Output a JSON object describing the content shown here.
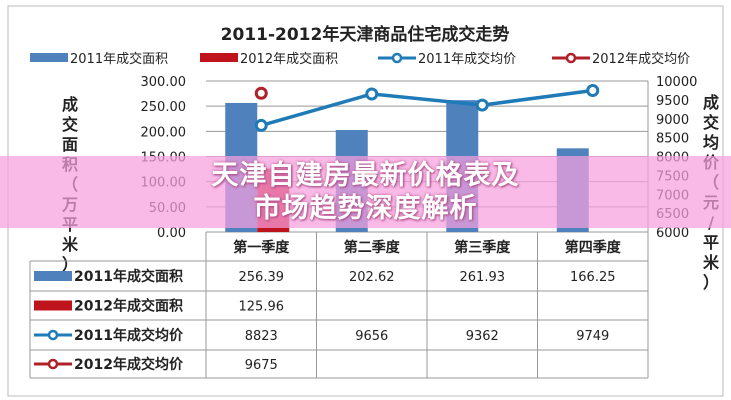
{
  "banner": {
    "headline": "天津自建房最新价格表及市场趋势深度解析"
  },
  "chart_data": {
    "type": "bar+line",
    "title": "2011-2012年天津商品住宅成交走势",
    "categories": [
      "第一季度",
      "第二季度",
      "第三季度",
      "第四季度"
    ],
    "y_left": {
      "label": "成交面积（万平米）",
      "range": [
        0,
        300
      ],
      "ticks": [
        "0.00",
        "50.00",
        "100.00",
        "150.00",
        "200.00",
        "250.00",
        "300.00"
      ]
    },
    "y_right": {
      "label": "成交均价（元/平米）",
      "range": [
        6000,
        10000
      ],
      "ticks": [
        "6000",
        "6500",
        "7000",
        "7500",
        "8000",
        "8500",
        "9000",
        "9500",
        "10000"
      ]
    },
    "grid": true,
    "legend": "top",
    "series": [
      {
        "name": "2011年成交面积",
        "kind": "bar",
        "axis": "left",
        "color": "#4f81bd",
        "values": [
          256.39,
          202.62,
          261.93,
          166.25
        ],
        "labels": [
          "256.39",
          "202.62",
          "261.93",
          "166.25"
        ]
      },
      {
        "name": "2012年成交面积",
        "kind": "bar",
        "axis": "left",
        "color": "#c0141c",
        "values": [
          125.96,
          null,
          null,
          null
        ],
        "labels": [
          "125.96",
          "",
          "",
          ""
        ]
      },
      {
        "name": "2011年成交均价",
        "kind": "line",
        "axis": "right",
        "color": "#1f7ab8",
        "values": [
          8823,
          9656,
          9362,
          9749
        ],
        "labels": [
          "8823",
          "9656",
          "9362",
          "9749"
        ]
      },
      {
        "name": "2012年成交均价",
        "kind": "line",
        "axis": "right",
        "color": "#b02028",
        "values": [
          9675,
          null,
          null,
          null
        ],
        "labels": [
          "9675",
          "",
          "",
          ""
        ]
      }
    ]
  }
}
